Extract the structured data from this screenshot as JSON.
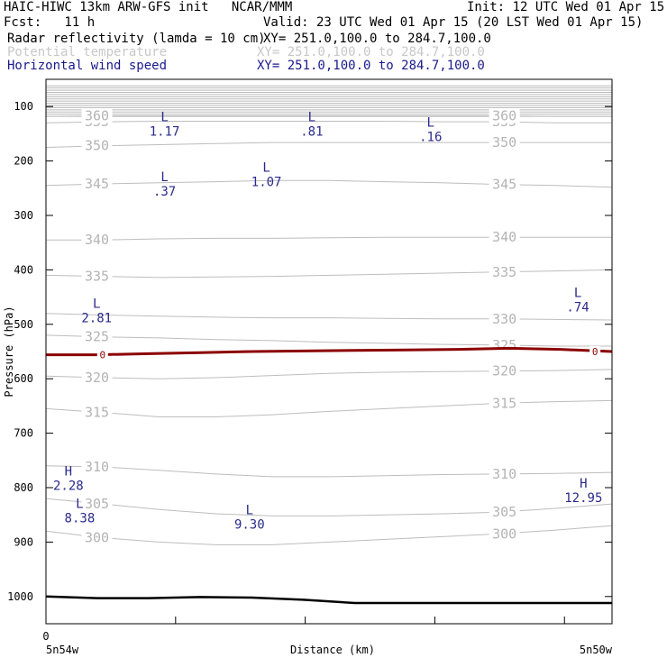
{
  "header": {
    "model_line": "HAIC-HIWC 13km ARW-GFS init   NCAR/MMM",
    "init_line": "Init: 12 UTC Wed 01 Apr 15",
    "fcst_line": "Fcst:   11 h",
    "valid_line": "Valid: 23 UTC Wed 01 Apr 15 (20 LST Wed 01 Apr 15)",
    "fields": [
      {
        "name": "Radar reflectivity (lamda = 10 cm)",
        "xy": "XY= 251.0,100.0 to 284.7,100.0",
        "color": "#000000"
      },
      {
        "name": "Potential temperature",
        "xy": "XY= 251.0,100.0 to 284.7,100.0",
        "color": "#c8c8c8"
      },
      {
        "name": "Horizontal wind speed",
        "xy": "XY= 251.0,100.0 to 284.7,100.0",
        "color": "#1a1a8c"
      }
    ]
  },
  "chart_data": {
    "type": "line",
    "title": "",
    "ylabel": "Pressure (hPa)",
    "xlabel": "Distance (km)",
    "x_start_label": "0",
    "x_left_label": "5n54w",
    "x_right_label": "5n50w",
    "ylim": [
      1050,
      50
    ],
    "yticks": [
      100,
      200,
      300,
      400,
      500,
      600,
      700,
      800,
      900,
      1000
    ],
    "theta_contours": [
      {
        "value": 300,
        "labels": [
          "300",
          "300"
        ],
        "p": [
          880,
          892,
          900,
          905,
          905,
          900,
          895,
          890,
          885,
          878,
          870
        ]
      },
      {
        "value": 305,
        "labels": [
          "305",
          "305"
        ],
        "p": [
          820,
          830,
          840,
          848,
          852,
          852,
          850,
          848,
          845,
          838,
          830
        ]
      },
      {
        "value": 310,
        "labels": [
          "310",
          "310"
        ],
        "p": [
          760,
          762,
          768,
          775,
          780,
          780,
          778,
          776,
          775,
          774,
          772
        ]
      },
      {
        "value": 315,
        "labels": [
          "315",
          "315"
        ],
        "p": [
          655,
          662,
          670,
          670,
          666,
          660,
          655,
          650,
          645,
          642,
          640
        ]
      },
      {
        "value": 320,
        "labels": [
          "320",
          "320"
        ],
        "p": [
          595,
          598,
          600,
          598,
          594,
          590,
          588,
          587,
          586,
          585,
          583
        ]
      },
      {
        "value": 325,
        "labels": [
          "325",
          "325"
        ],
        "p": [
          520,
          523,
          525,
          528,
          530,
          533,
          535,
          537,
          538,
          540,
          540
        ]
      },
      {
        "value": 330,
        "labels": [
          "330"
        ],
        "p": [
          480,
          483,
          485,
          487,
          488,
          488,
          489,
          490,
          490,
          491,
          492
        ]
      },
      {
        "value": 335,
        "labels": [
          "335",
          "335"
        ],
        "p": [
          410,
          412,
          414,
          413,
          412,
          410,
          408,
          406,
          404,
          402,
          400
        ]
      },
      {
        "value": 340,
        "labels": [
          "340",
          "340"
        ],
        "p": [
          345,
          345,
          343,
          342,
          342,
          341,
          340,
          340,
          340,
          340,
          340
        ]
      },
      {
        "value": 345,
        "labels": [
          "345",
          "345"
        ],
        "p": [
          245,
          242,
          240,
          238,
          236,
          236,
          238,
          240,
          243,
          245,
          248
        ]
      },
      {
        "value": 350,
        "labels": [
          "350",
          "350"
        ],
        "p": [
          175,
          172,
          170,
          168,
          166,
          166,
          166,
          166,
          166,
          166,
          166
        ]
      },
      {
        "value": 355,
        "labels": [
          "355",
          "355"
        ],
        "p": [
          130,
          128,
          127,
          127,
          127,
          127,
          127,
          128,
          128,
          130,
          130
        ]
      },
      {
        "value": 360,
        "labels": [
          "360",
          "360"
        ],
        "p": [
          118,
          117,
          117,
          117,
          117,
          117,
          117,
          117,
          117,
          118,
          118
        ]
      }
    ],
    "upper_lines_p": [
      62,
      66,
      70,
      74,
      78,
      82,
      86,
      90,
      94,
      98,
      102,
      106,
      110,
      114,
      118
    ],
    "zero_contour": {
      "label": "0",
      "p": [
        556,
        556,
        554,
        552,
        550,
        549,
        548,
        547,
        546,
        544,
        546,
        550
      ],
      "color": "#8b0000"
    },
    "surface": {
      "p": [
        1000,
        1003,
        1003,
        1001,
        1002,
        1006,
        1012,
        1012,
        1012,
        1012,
        1012,
        1012
      ]
    },
    "wind_extrema": [
      {
        "type": "L",
        "value": "1.17",
        "x": 0.2,
        "p": 127
      },
      {
        "type": "L",
        "value": ".81",
        "x": 0.46,
        "p": 127
      },
      {
        "type": "L",
        "value": ".16",
        "x": 0.67,
        "p": 137
      },
      {
        "type": "L",
        "value": ".37",
        "x": 0.2,
        "p": 237
      },
      {
        "type": "L",
        "value": "1.07",
        "x": 0.38,
        "p": 220
      },
      {
        "type": "L",
        "value": "2.81",
        "x": 0.08,
        "p": 470
      },
      {
        "type": "L",
        "value": ".74",
        "x": 0.93,
        "p": 450
      },
      {
        "type": "H",
        "value": "2.28",
        "x": 0.03,
        "p": 778
      },
      {
        "type": "H",
        "value": "12.95",
        "x": 0.94,
        "p": 800
      },
      {
        "type": "L",
        "value": "8.38",
        "x": 0.05,
        "p": 837
      },
      {
        "type": "L",
        "value": "9.30",
        "x": 0.35,
        "p": 849
      }
    ]
  }
}
